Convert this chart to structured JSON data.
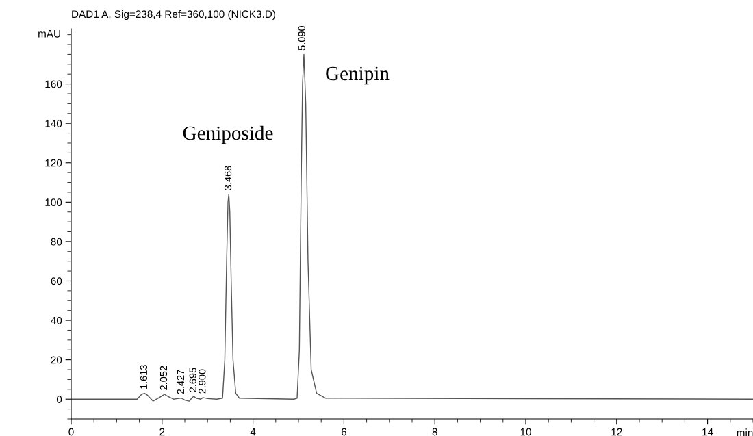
{
  "chart_data": {
    "type": "line",
    "title": "DAD1 A, Sig=238,4 Ref=360,100 (NICK3.D)",
    "xlabel": "min",
    "ylabel": "mAU",
    "xlim": [
      0,
      15
    ],
    "ylim": [
      -10,
      188
    ],
    "xticks": [
      0,
      2,
      4,
      6,
      8,
      10,
      12,
      14
    ],
    "yticks": [
      0,
      20,
      40,
      60,
      80,
      100,
      120,
      140,
      160
    ],
    "grid": false,
    "legend": false,
    "marker": "none",
    "line_style": "solid",
    "series": [
      {
        "color": "#555555",
        "x": [
          0,
          1.45,
          1.55,
          1.613,
          1.68,
          1.8,
          1.95,
          2.052,
          2.12,
          2.25,
          2.4,
          2.427,
          2.5,
          2.6,
          2.65,
          2.695,
          2.75,
          2.85,
          2.9,
          3.0,
          3.2,
          3.33,
          3.38,
          3.42,
          3.45,
          3.468,
          3.49,
          3.52,
          3.56,
          3.62,
          3.7,
          4.9,
          4.97,
          5.02,
          5.06,
          5.09,
          5.12,
          5.16,
          5.21,
          5.28,
          5.4,
          5.6,
          15
        ],
        "values": [
          0,
          0,
          2.5,
          3,
          2,
          -1,
          1,
          2.5,
          1.5,
          0,
          0.5,
          0.5,
          -0.5,
          -1,
          0.5,
          1.5,
          0.5,
          0,
          0.8,
          0.3,
          0,
          0.5,
          20,
          70,
          100,
          104,
          95,
          60,
          20,
          3,
          0.5,
          0,
          0.5,
          25,
          110,
          160,
          175,
          150,
          70,
          15,
          3,
          0.5,
          0
        ]
      }
    ],
    "annotations": [
      {
        "text": "1.613",
        "x": 1.613,
        "y": 3
      },
      {
        "text": "2.052",
        "x": 2.052,
        "y": 2.5
      },
      {
        "text": "2.427",
        "x": 2.427,
        "y": 0.5
      },
      {
        "text": "2.695",
        "x": 2.695,
        "y": 1.5
      },
      {
        "text": "2.900",
        "x": 2.9,
        "y": 0.8
      },
      {
        "text": "3.468",
        "x": 3.468,
        "y": 104
      },
      {
        "text": "5.090",
        "x": 5.09,
        "y": 175
      },
      "Geniposide",
      "Genipin"
    ]
  }
}
